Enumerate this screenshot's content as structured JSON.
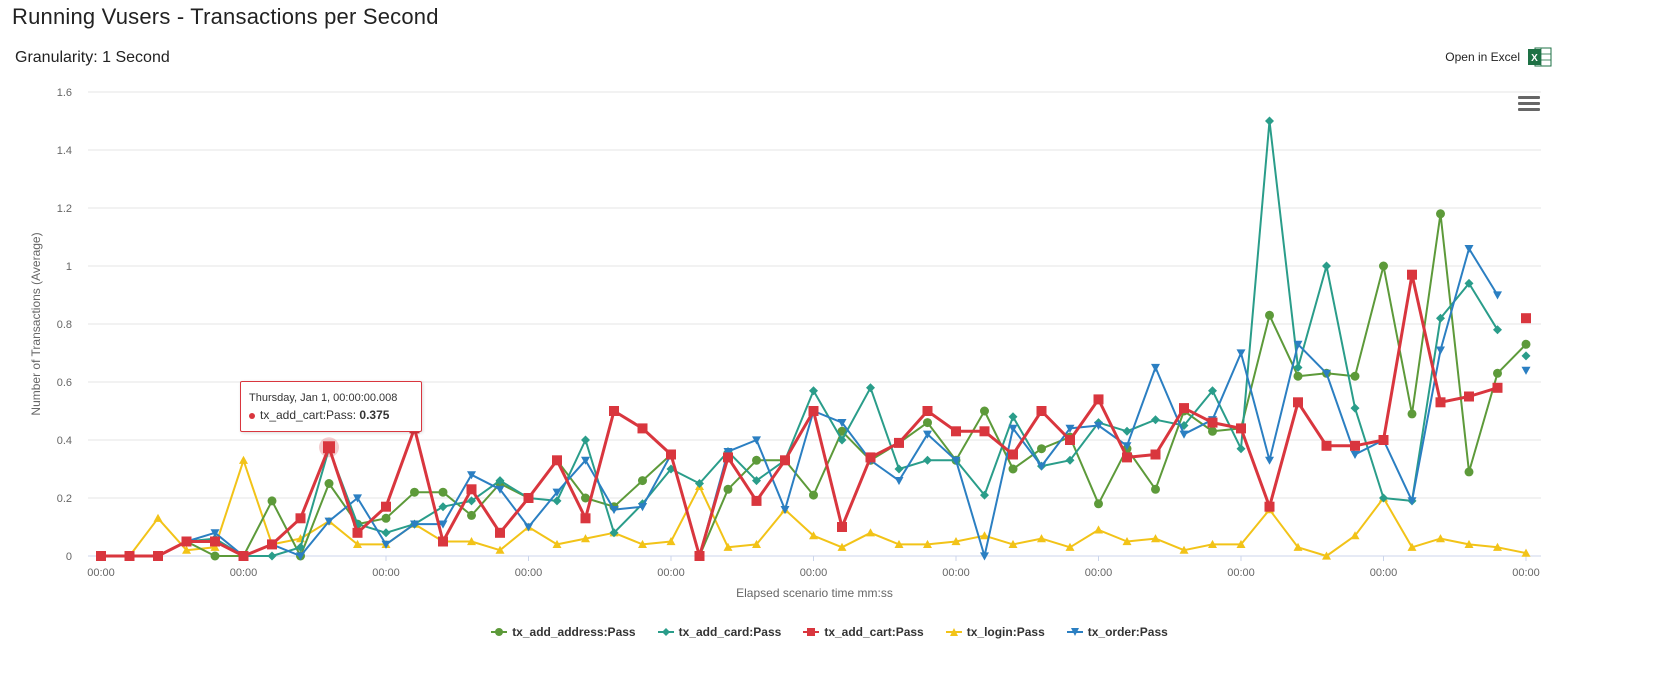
{
  "header": {
    "title": "Running Vusers - Transactions per Second",
    "granularity": "Granularity: 1 Second",
    "excel_label": "Open in Excel"
  },
  "tooltip": {
    "date": "Thursday, Jan 1, 00:00:00.008",
    "series_label": "tx_add_cart:Pass: ",
    "value": "0.375"
  },
  "chart_data": {
    "type": "line",
    "xlabel": "Elapsed scenario time mm:ss",
    "ylabel": "Number of Transactions (Average)",
    "ylim": [
      0,
      1.6
    ],
    "yticks": [
      "0",
      "0.2",
      "0.4",
      "0.6",
      "0.8",
      "1",
      "1.2",
      "1.4",
      "1.6"
    ],
    "xtick_labels": [
      "00:00",
      "00:00",
      "00:00",
      "00:00",
      "00:00",
      "00:00",
      "00:00",
      "00:00",
      "00:00",
      "00:00",
      "00:00"
    ],
    "x_points": 51,
    "grid": true,
    "legend": "bottom-center",
    "series": [
      {
        "name": "tx_add_address:Pass",
        "color": "#5d9a3a",
        "marker": "circle",
        "values": [
          0,
          0,
          0,
          0.05,
          0,
          0,
          0.19,
          0,
          0.25,
          0.11,
          0.13,
          0.22,
          0.22,
          0.14,
          0.25,
          0.2,
          0.33,
          0.2,
          0.17,
          0.26,
          0.35,
          0,
          0.23,
          0.33,
          0.33,
          0.21,
          0.43,
          0.33,
          0.39,
          0.46,
          0.33,
          0.5,
          0.3,
          0.37,
          0.41,
          0.18,
          0.37,
          0.23,
          0.5,
          0.43,
          0.44,
          0.83,
          0.62,
          0.63,
          0.62,
          1,
          0.49,
          1.18,
          0.29,
          0.63,
          0.73
        ]
      },
      {
        "name": "tx_add_card:Pass",
        "color": "#2a9d8a",
        "marker": "diamond",
        "values": [
          0,
          0,
          0,
          0.05,
          0.06,
          0,
          0,
          0.03,
          0.37,
          0.11,
          0.08,
          0.11,
          0.17,
          0.19,
          0.26,
          0.2,
          0.19,
          0.4,
          0.08,
          0.18,
          0.3,
          0.25,
          0.36,
          0.26,
          0.33,
          0.57,
          0.4,
          0.58,
          0.3,
          0.33,
          0.33,
          0.21,
          0.48,
          0.31,
          0.33,
          0.46,
          0.43,
          0.47,
          0.45,
          0.57,
          0.37,
          1.5,
          0.65,
          1,
          0.51,
          0.2,
          0.19,
          0.82,
          0.94,
          0.78,
          0.69
        ]
      },
      {
        "name": "tx_add_cart:Pass",
        "color": "#d9363e",
        "marker": "square",
        "values": [
          0,
          0,
          0,
          0.05,
          0.05,
          0,
          0.04,
          0.13,
          0.375,
          0.08,
          0.17,
          0.44,
          0.05,
          0.23,
          0.08,
          0.2,
          0.33,
          0.13,
          0.5,
          0.44,
          0.35,
          0,
          0.34,
          0.19,
          0.33,
          0.5,
          0.1,
          0.34,
          0.39,
          0.5,
          0.43,
          0.43,
          0.35,
          0.5,
          0.4,
          0.54,
          0.34,
          0.35,
          0.51,
          0.46,
          0.44,
          0.17,
          0.53,
          0.38,
          0.38,
          0.4,
          0.97,
          0.53,
          0.55,
          0.58,
          0.82
        ]
      },
      {
        "name": "tx_login:Pass",
        "color": "#f2c318",
        "marker": "triangle",
        "values": [
          0,
          0,
          0.13,
          0.02,
          0.03,
          0.33,
          0.04,
          0.06,
          0.12,
          0.04,
          0.04,
          0.11,
          0.05,
          0.05,
          0.02,
          0.1,
          0.04,
          0.06,
          0.08,
          0.04,
          0.05,
          0.24,
          0.03,
          0.04,
          0.16,
          0.07,
          0.03,
          0.08,
          0.04,
          0.04,
          0.05,
          0.07,
          0.04,
          0.06,
          0.03,
          0.09,
          0.05,
          0.06,
          0.02,
          0.04,
          0.04,
          0.16,
          0.03,
          0,
          0.07,
          0.2,
          0.03,
          0.06,
          0.04,
          0.03,
          0.01
        ]
      },
      {
        "name": "tx_order:Pass",
        "color": "#2b7fc2",
        "marker": "triangle-down",
        "values": [
          0,
          0,
          0,
          0.05,
          0.08,
          0,
          0.04,
          0,
          0.12,
          0.2,
          0.04,
          0.11,
          0.11,
          0.28,
          0.23,
          0.1,
          0.22,
          0.33,
          0.16,
          0.17,
          0.35,
          0,
          0.36,
          0.4,
          0.16,
          0.5,
          0.46,
          0.33,
          0.26,
          0.42,
          0.33,
          0,
          0.44,
          0.31,
          0.44,
          0.45,
          0.38,
          0.65,
          0.42,
          0.47,
          0.7,
          0.33,
          0.73,
          0.63,
          0.35,
          0.4,
          0.19,
          0.71,
          1.06,
          0.9,
          0.64
        ]
      }
    ]
  }
}
